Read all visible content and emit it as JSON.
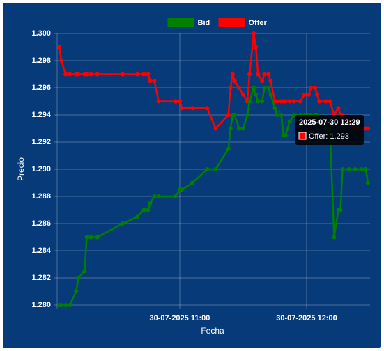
{
  "chart_data": {
    "type": "line",
    "x_label": "Fecha",
    "y_label": "Precio",
    "x": [
      "2025-07-30 10:03",
      "2025-07-30 10:04",
      "2025-07-30 10:06",
      "2025-07-30 10:08",
      "2025-07-30 10:11",
      "2025-07-30 10:12",
      "2025-07-30 10:15",
      "2025-07-30 10:16",
      "2025-07-30 10:18",
      "2025-07-30 10:21",
      "2025-07-30 10:33",
      "2025-07-30 10:40",
      "2025-07-30 10:43",
      "2025-07-30 10:45",
      "2025-07-30 10:46",
      "2025-07-30 10:48",
      "2025-07-30 10:50",
      "2025-07-30 10:58",
      "2025-07-30 11:00",
      "2025-07-30 11:01",
      "2025-07-30 11:06",
      "2025-07-30 11:13",
      "2025-07-30 11:17",
      "2025-07-30 11:23",
      "2025-07-30 11:24",
      "2025-07-30 11:25",
      "2025-07-30 11:26",
      "2025-07-30 11:28",
      "2025-07-30 11:30",
      "2025-07-30 11:32",
      "2025-07-30 11:33",
      "2025-07-30 11:35",
      "2025-07-30 11:36",
      "2025-07-30 11:37",
      "2025-07-30 11:39",
      "2025-07-30 11:40",
      "2025-07-30 11:42",
      "2025-07-30 11:43",
      "2025-07-30 11:45",
      "2025-07-30 11:46",
      "2025-07-30 11:48",
      "2025-07-30 11:49",
      "2025-07-30 11:50",
      "2025-07-30 11:52",
      "2025-07-30 11:54",
      "2025-07-30 11:57",
      "2025-07-30 11:59",
      "2025-07-30 12:01",
      "2025-07-30 12:02",
      "2025-07-30 12:04",
      "2025-07-30 12:05",
      "2025-07-30 12:06",
      "2025-07-30 12:09",
      "2025-07-30 12:11",
      "2025-07-30 12:13",
      "2025-07-30 12:15",
      "2025-07-30 12:16",
      "2025-07-30 12:17",
      "2025-07-30 12:20",
      "2025-07-30 12:23",
      "2025-07-30 12:26",
      "2025-07-30 12:28",
      "2025-07-30 12:29"
    ],
    "series": [
      {
        "name": "Bid",
        "color": "#008000",
        "values": [
          1.28,
          1.28,
          1.28,
          1.28,
          1.281,
          1.282,
          1.2825,
          1.285,
          1.285,
          1.285,
          1.286,
          1.2865,
          1.287,
          1.287,
          1.2875,
          1.288,
          1.288,
          1.288,
          1.2885,
          1.2885,
          1.289,
          1.29,
          1.29,
          1.2915,
          1.293,
          1.294,
          1.294,
          1.293,
          1.293,
          1.294,
          1.295,
          1.296,
          1.2955,
          1.295,
          1.295,
          1.296,
          1.296,
          1.2955,
          1.2945,
          1.294,
          1.294,
          1.2925,
          1.2925,
          1.2935,
          1.294,
          1.294,
          1.294,
          1.294,
          1.294,
          1.294,
          1.294,
          1.2935,
          1.293,
          1.293,
          1.285,
          1.287,
          1.287,
          1.29,
          1.29,
          1.29,
          1.29,
          1.29,
          1.289
        ]
      },
      {
        "name": "Offer",
        "color": "#ff0000",
        "values": [
          1.299,
          1.298,
          1.297,
          1.297,
          1.297,
          1.297,
          1.297,
          1.297,
          1.297,
          1.297,
          1.297,
          1.297,
          1.297,
          1.297,
          1.2965,
          1.2965,
          1.295,
          1.295,
          1.295,
          1.2945,
          1.2945,
          1.2945,
          1.293,
          1.294,
          1.296,
          1.297,
          1.2965,
          1.296,
          1.2955,
          1.295,
          1.297,
          1.3,
          1.299,
          1.297,
          1.2965,
          1.297,
          1.297,
          1.2965,
          1.295,
          1.295,
          1.295,
          1.295,
          1.295,
          1.295,
          1.295,
          1.295,
          1.2955,
          1.2955,
          1.296,
          1.296,
          1.2955,
          1.295,
          1.295,
          1.295,
          1.294,
          1.2945,
          1.294,
          1.294,
          1.2935,
          1.293,
          1.293,
          1.293,
          1.293
        ]
      }
    ],
    "xlim": [
      "2025-07-30 10:02",
      "2025-07-30 12:30"
    ],
    "xticks": [
      {
        "value": "2025-07-30 11:00",
        "label": "30-07-2025 11:00"
      },
      {
        "value": "2025-07-30 12:00",
        "label": "30-07-2025 12:00"
      }
    ],
    "ylim": [
      1.28,
      1.3
    ],
    "yticks": [
      {
        "value": 1.28,
        "label": "1.280"
      },
      {
        "value": 1.282,
        "label": "1.282"
      },
      {
        "value": 1.284,
        "label": "1.284"
      },
      {
        "value": 1.286,
        "label": "1.286"
      },
      {
        "value": 1.288,
        "label": "1.288"
      },
      {
        "value": 1.29,
        "label": "1.290"
      },
      {
        "value": 1.292,
        "label": "1.292"
      },
      {
        "value": 1.294,
        "label": "1.294"
      },
      {
        "value": 1.296,
        "label": "1.296"
      },
      {
        "value": 1.298,
        "label": "1.298"
      },
      {
        "value": 1.3,
        "label": "1.300"
      }
    ],
    "grid": true,
    "legend": "top",
    "background": "#073a78",
    "tooltip": {
      "title": "2025-07-30 12:29",
      "label": "Offer: 1.293",
      "color": "#ff0000"
    }
  }
}
